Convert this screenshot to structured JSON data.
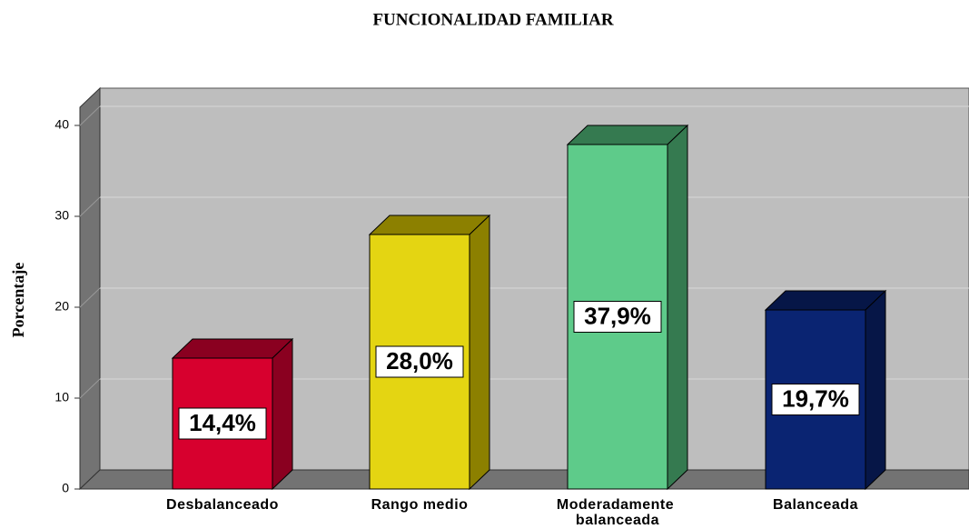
{
  "chart_data": {
    "type": "bar3d",
    "title": "FUNCIONALIDAD FAMILIAR",
    "y_label": "Porcentaje",
    "categories": [
      "Desbalanceado",
      "Rango medio",
      "Moderadamente balanceada",
      "Balanceada"
    ],
    "values": [
      14.4,
      28.0,
      37.9,
      19.7
    ],
    "value_labels": [
      "14,4%",
      "28,0%",
      "37,9%",
      "19,7%"
    ],
    "colors": [
      "#d7002e",
      "#e4d512",
      "#5ecb8a",
      "#0a2472"
    ],
    "side_colors": [
      "#8a0020",
      "#8c8000",
      "#357a50",
      "#061647"
    ],
    "ylim": [
      0,
      40
    ],
    "yticks": [
      0,
      10,
      20,
      30,
      40
    ],
    "grid": true
  }
}
